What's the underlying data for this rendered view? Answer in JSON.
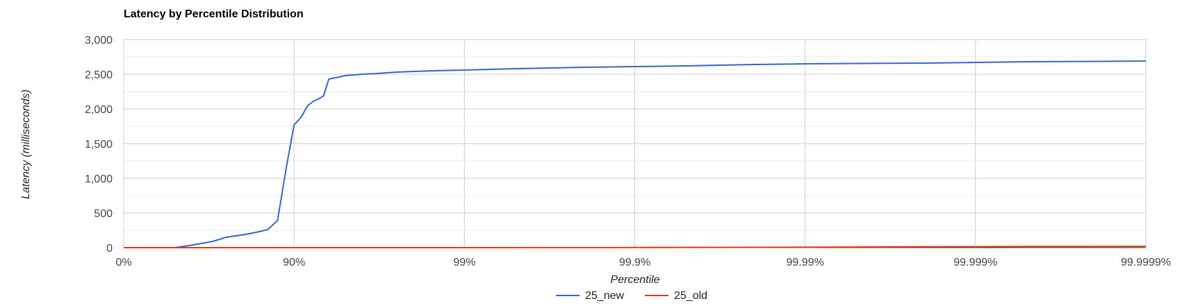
{
  "chart_data": {
    "type": "line",
    "title": "Latency by Percentile Distribution",
    "xlabel": "Percentile",
    "ylabel": "Latency (milliseconds)",
    "x_scale": "log (1/(1-p))",
    "x_ticks": [
      "0%",
      "90%",
      "99%",
      "99.9%",
      "99.99%",
      "99.999%",
      "99.9999%"
    ],
    "y_ticks": [
      "0",
      "500",
      "1,000",
      "1,500",
      "2,000",
      "2,500",
      "3,000"
    ],
    "ylim": [
      0,
      3000
    ],
    "grid": true,
    "legend_position": "bottom",
    "series": [
      {
        "name": "25_new",
        "color": "#3366cc",
        "x": [
          0,
          50,
          60,
          70,
          75,
          80,
          83.3,
          85.7,
          87.5,
          88.9,
          90,
          90.9,
          91.7,
          92.3,
          92.9,
          93.3,
          93.75,
          95,
          96,
          96.7,
          97.5,
          98,
          98.5,
          99,
          99.5,
          99.8,
          99.9,
          99.95,
          99.98,
          99.99,
          99.995,
          99.998,
          99.999,
          99.9995,
          99.9998,
          99.9999
        ],
        "y": [
          0,
          0,
          35,
          90,
          150,
          185,
          220,
          260,
          390,
          1160,
          1770,
          1880,
          2050,
          2110,
          2150,
          2190,
          2430,
          2480,
          2500,
          2510,
          2530,
          2540,
          2550,
          2560,
          2580,
          2600,
          2610,
          2620,
          2640,
          2650,
          2655,
          2660,
          2670,
          2680,
          2685,
          2690
        ]
      },
      {
        "name": "25_old",
        "color": "#dc3912",
        "x": [
          0,
          90,
          99,
          99.9,
          99.99,
          99.995,
          99.998,
          99.999,
          99.9995,
          99.9999
        ],
        "y": [
          0,
          0,
          0,
          2,
          6,
          9,
          12,
          14,
          16,
          18
        ]
      }
    ]
  }
}
